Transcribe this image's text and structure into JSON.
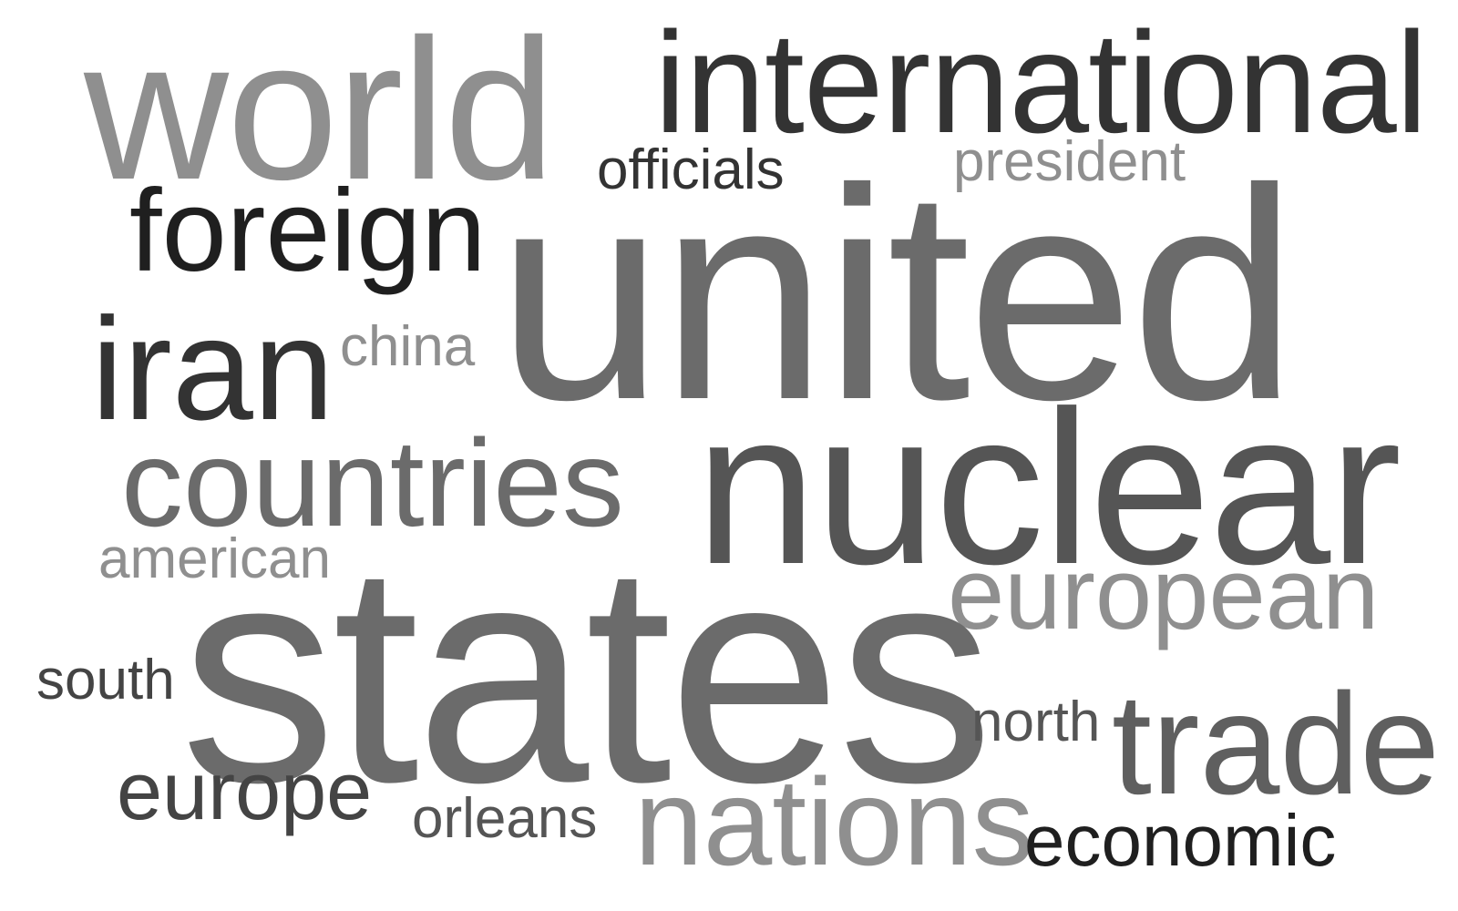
{
  "words": {
    "world": {
      "text": "world",
      "color": "#8f8f8f"
    },
    "international": {
      "text": "international",
      "color": "#333333"
    },
    "officials": {
      "text": "officials",
      "color": "#333333"
    },
    "president": {
      "text": "president",
      "color": "#8f8f8f"
    },
    "foreign": {
      "text": "foreign",
      "color": "#1f1f1f"
    },
    "united": {
      "text": "united",
      "color": "#6b6b6b"
    },
    "iran": {
      "text": "iran",
      "color": "#333333"
    },
    "china": {
      "text": "china",
      "color": "#8f8f8f"
    },
    "countries": {
      "text": "countries",
      "color": "#6b6b6b"
    },
    "nuclear": {
      "text": "nuclear",
      "color": "#555555"
    },
    "american": {
      "text": "american",
      "color": "#8f8f8f"
    },
    "european": {
      "text": "european",
      "color": "#8f8f8f"
    },
    "states": {
      "text": "states",
      "color": "#6b6b6b"
    },
    "south": {
      "text": "south",
      "color": "#444444"
    },
    "north": {
      "text": "north",
      "color": "#555555"
    },
    "trade": {
      "text": "trade",
      "color": "#5f5f5f"
    },
    "europe": {
      "text": "europe",
      "color": "#444444"
    },
    "orleans": {
      "text": "orleans",
      "color": "#555555"
    },
    "nations": {
      "text": "nations",
      "color": "#8f8f8f"
    },
    "economic": {
      "text": "economic",
      "color": "#1f1f1f"
    }
  }
}
